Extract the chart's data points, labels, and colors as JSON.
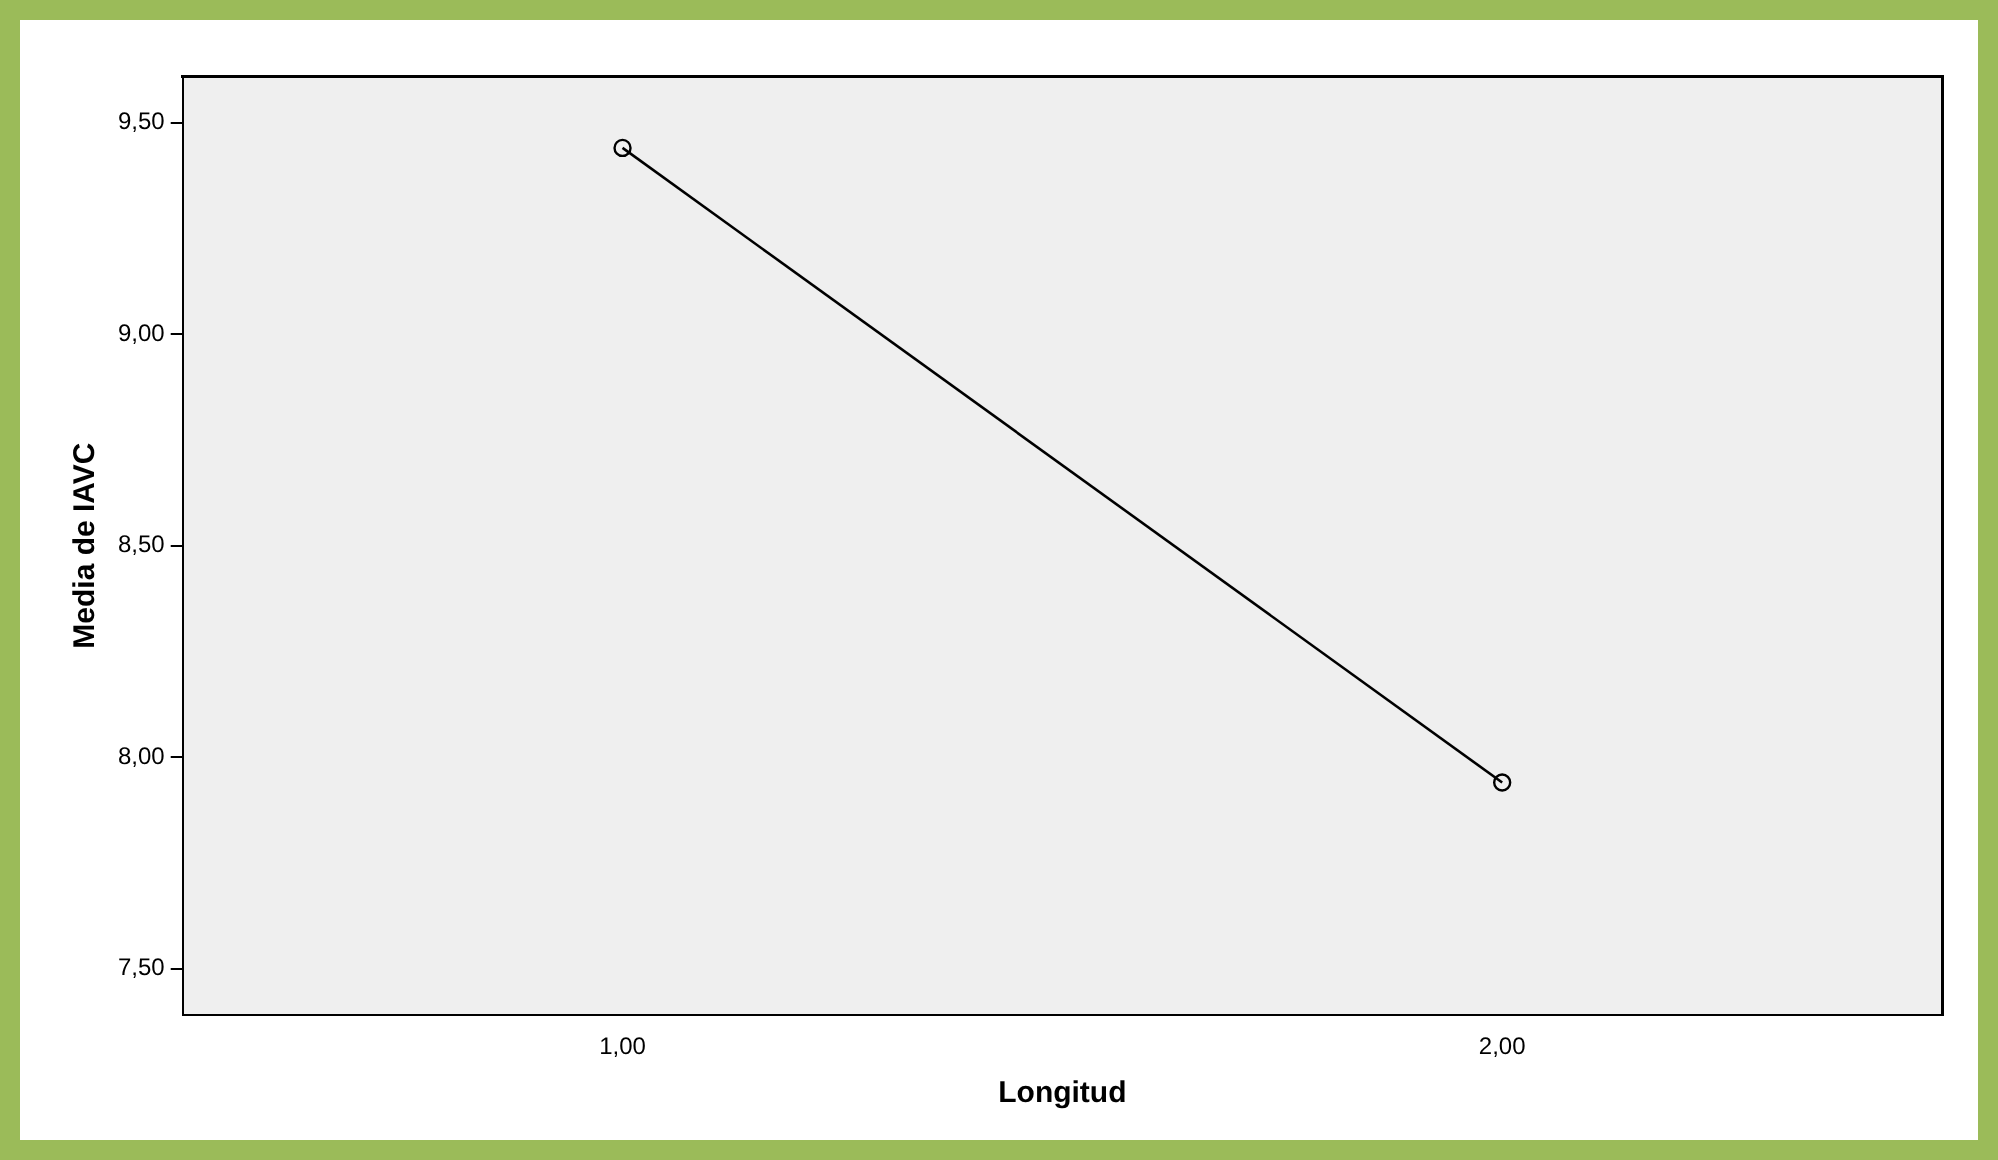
{
  "chart_data": {
    "type": "line",
    "xlabel": "Longitud",
    "ylabel": "Media de IAVC",
    "categories": [
      "1,00",
      "2,00"
    ],
    "series": [
      {
        "color": "#000000",
        "values": [
          9.44,
          7.94
        ]
      }
    ],
    "ylim": [
      7.39,
      9.61
    ],
    "yticks": [
      {
        "value": 7.5,
        "label": "7,50"
      },
      {
        "value": 8,
        "label": "8,00"
      },
      {
        "value": 8.5,
        "label": "8,50"
      },
      {
        "value": 9,
        "label": "9,00"
      },
      {
        "value": 9.5,
        "label": "9,50"
      }
    ],
    "grid": false,
    "legend": false,
    "marker": "circle",
    "line_style": "solid"
  }
}
